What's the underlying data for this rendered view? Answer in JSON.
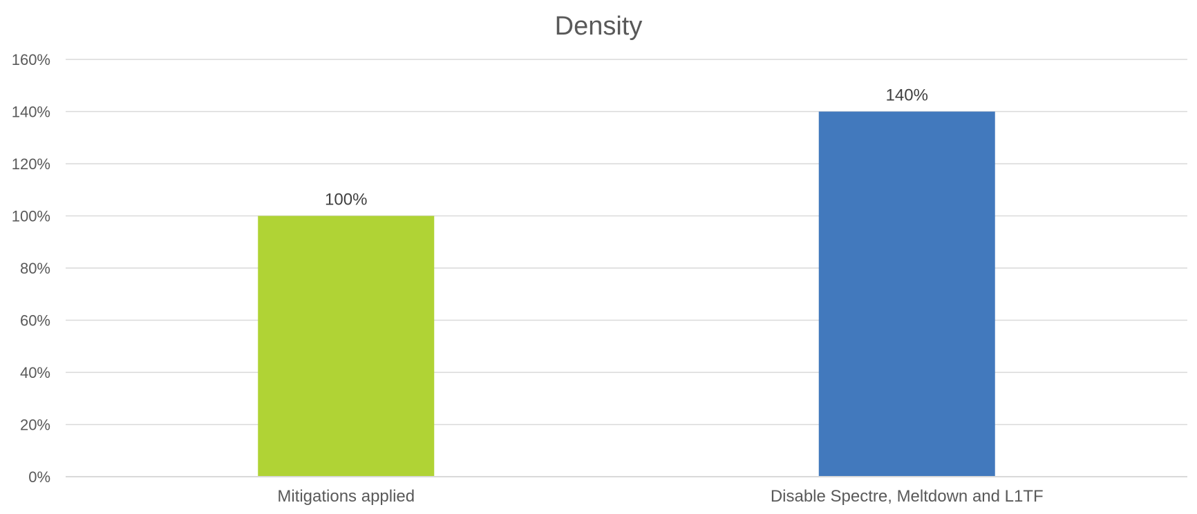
{
  "chart_data": {
    "type": "bar",
    "title": "Density",
    "xlabel": "",
    "ylabel": "",
    "categories": [
      "Mitigations applied",
      "Disable Spectre, Meltdown and L1TF"
    ],
    "values": [
      100,
      140
    ],
    "data_labels": [
      "100%",
      "140%"
    ],
    "bar_colors": [
      "#b0d335",
      "#4279bd"
    ],
    "ylim": [
      0,
      160
    ],
    "yticks": [
      0,
      20,
      40,
      60,
      80,
      100,
      120,
      140,
      160
    ],
    "ytick_labels": [
      "0%",
      "20%",
      "40%",
      "60%",
      "80%",
      "100%",
      "120%",
      "140%",
      "160%"
    ],
    "grid": true,
    "legend": "none"
  }
}
